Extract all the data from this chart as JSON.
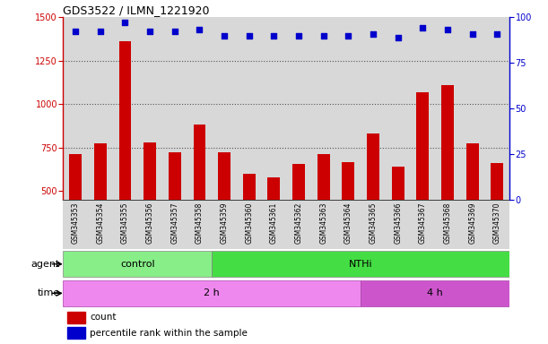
{
  "title": "GDS3522 / ILMN_1221920",
  "samples": [
    "GSM345353",
    "GSM345354",
    "GSM345355",
    "GSM345356",
    "GSM345357",
    "GSM345358",
    "GSM345359",
    "GSM345360",
    "GSM345361",
    "GSM345362",
    "GSM345363",
    "GSM345364",
    "GSM345365",
    "GSM345366",
    "GSM345367",
    "GSM345368",
    "GSM345369",
    "GSM345370"
  ],
  "counts": [
    710,
    775,
    1360,
    780,
    720,
    880,
    720,
    600,
    575,
    655,
    710,
    665,
    830,
    640,
    1070,
    1110,
    775,
    660
  ],
  "percentile_ranks": [
    92,
    92,
    97,
    92,
    92,
    93,
    90,
    90,
    90,
    90,
    90,
    90,
    91,
    89,
    94,
    93,
    91,
    91
  ],
  "ylim_left": [
    450,
    1500
  ],
  "ylim_right": [
    0,
    100
  ],
  "yticks_left": [
    500,
    750,
    1000,
    1250,
    1500
  ],
  "yticks_right": [
    0,
    25,
    50,
    75,
    100
  ],
  "bar_color": "#cc0000",
  "dot_color": "#0000cc",
  "agent_groups": [
    {
      "label": "control",
      "n_samples": 6,
      "color": "#88ee88"
    },
    {
      "label": "NTHi",
      "n_samples": 12,
      "color": "#44dd44"
    }
  ],
  "time_groups": [
    {
      "label": "2 h",
      "n_samples": 12,
      "color": "#ee88ee"
    },
    {
      "label": "4 h",
      "n_samples": 6,
      "color": "#cc55cc"
    }
  ],
  "agent_label": "agent",
  "time_label": "time",
  "legend_count": "count",
  "legend_pct": "percentile rank within the sample",
  "grid_color": "#555555",
  "col_bg_even": "#e0e0e0",
  "col_bg_odd": "#e8e8e8",
  "plot_bg": "#ffffff"
}
